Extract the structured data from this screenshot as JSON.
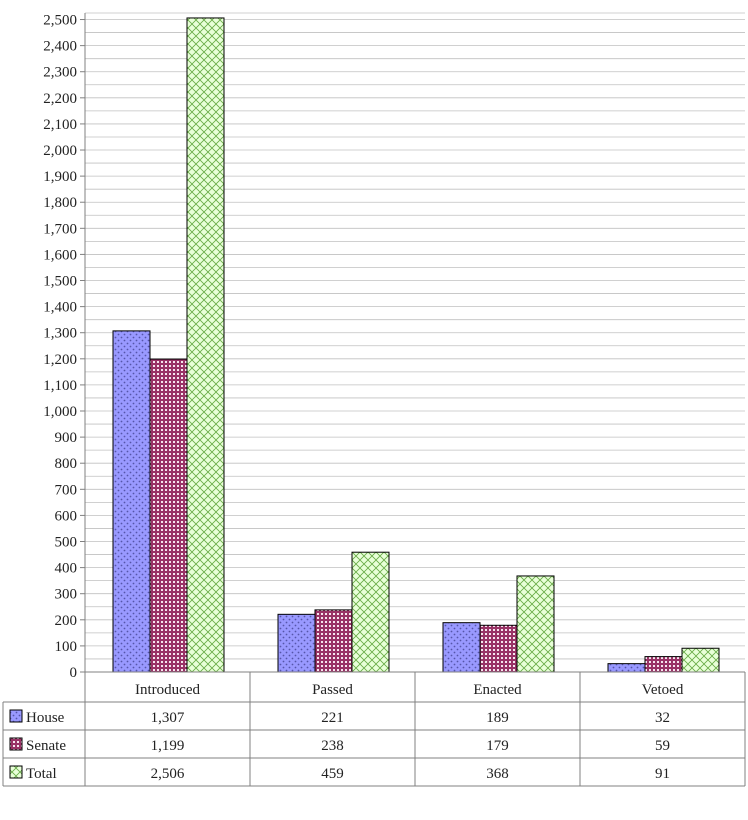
{
  "chart_data": {
    "type": "bar",
    "categories": [
      "Introduced",
      "Passed",
      "Enacted",
      "Vetoed"
    ],
    "series": [
      {
        "name": "House",
        "values": [
          1307,
          221,
          189,
          32
        ],
        "display": [
          "1,307",
          "221",
          "189",
          "32"
        ]
      },
      {
        "name": "Senate",
        "values": [
          1199,
          238,
          179,
          59
        ],
        "display": [
          "1,199",
          "238",
          "179",
          "59"
        ]
      },
      {
        "name": "Total",
        "values": [
          2506,
          459,
          368,
          91
        ],
        "display": [
          "2,506",
          "459",
          "368",
          "91"
        ]
      }
    ],
    "yticks": [
      "0",
      "100",
      "200",
      "300",
      "400",
      "500",
      "600",
      "700",
      "800",
      "900",
      "1,000",
      "1,100",
      "1,200",
      "1,300",
      "1,400",
      "1,500",
      "1,600",
      "1,700",
      "1,800",
      "1,900",
      "2,000",
      "2,100",
      "2,200",
      "2,300",
      "2,400",
      "2,500"
    ],
    "ylim": [
      0,
      2500
    ],
    "grid": true,
    "data_table": true,
    "colors": {
      "House": "#9999ff",
      "Senate": "#993366",
      "Total": "#ccffcc",
      "gridline": "#c0c0c0",
      "axis": "#808080"
    },
    "patterns": {
      "House": "dots",
      "Senate": "grid",
      "Total": "crosshatch"
    }
  }
}
